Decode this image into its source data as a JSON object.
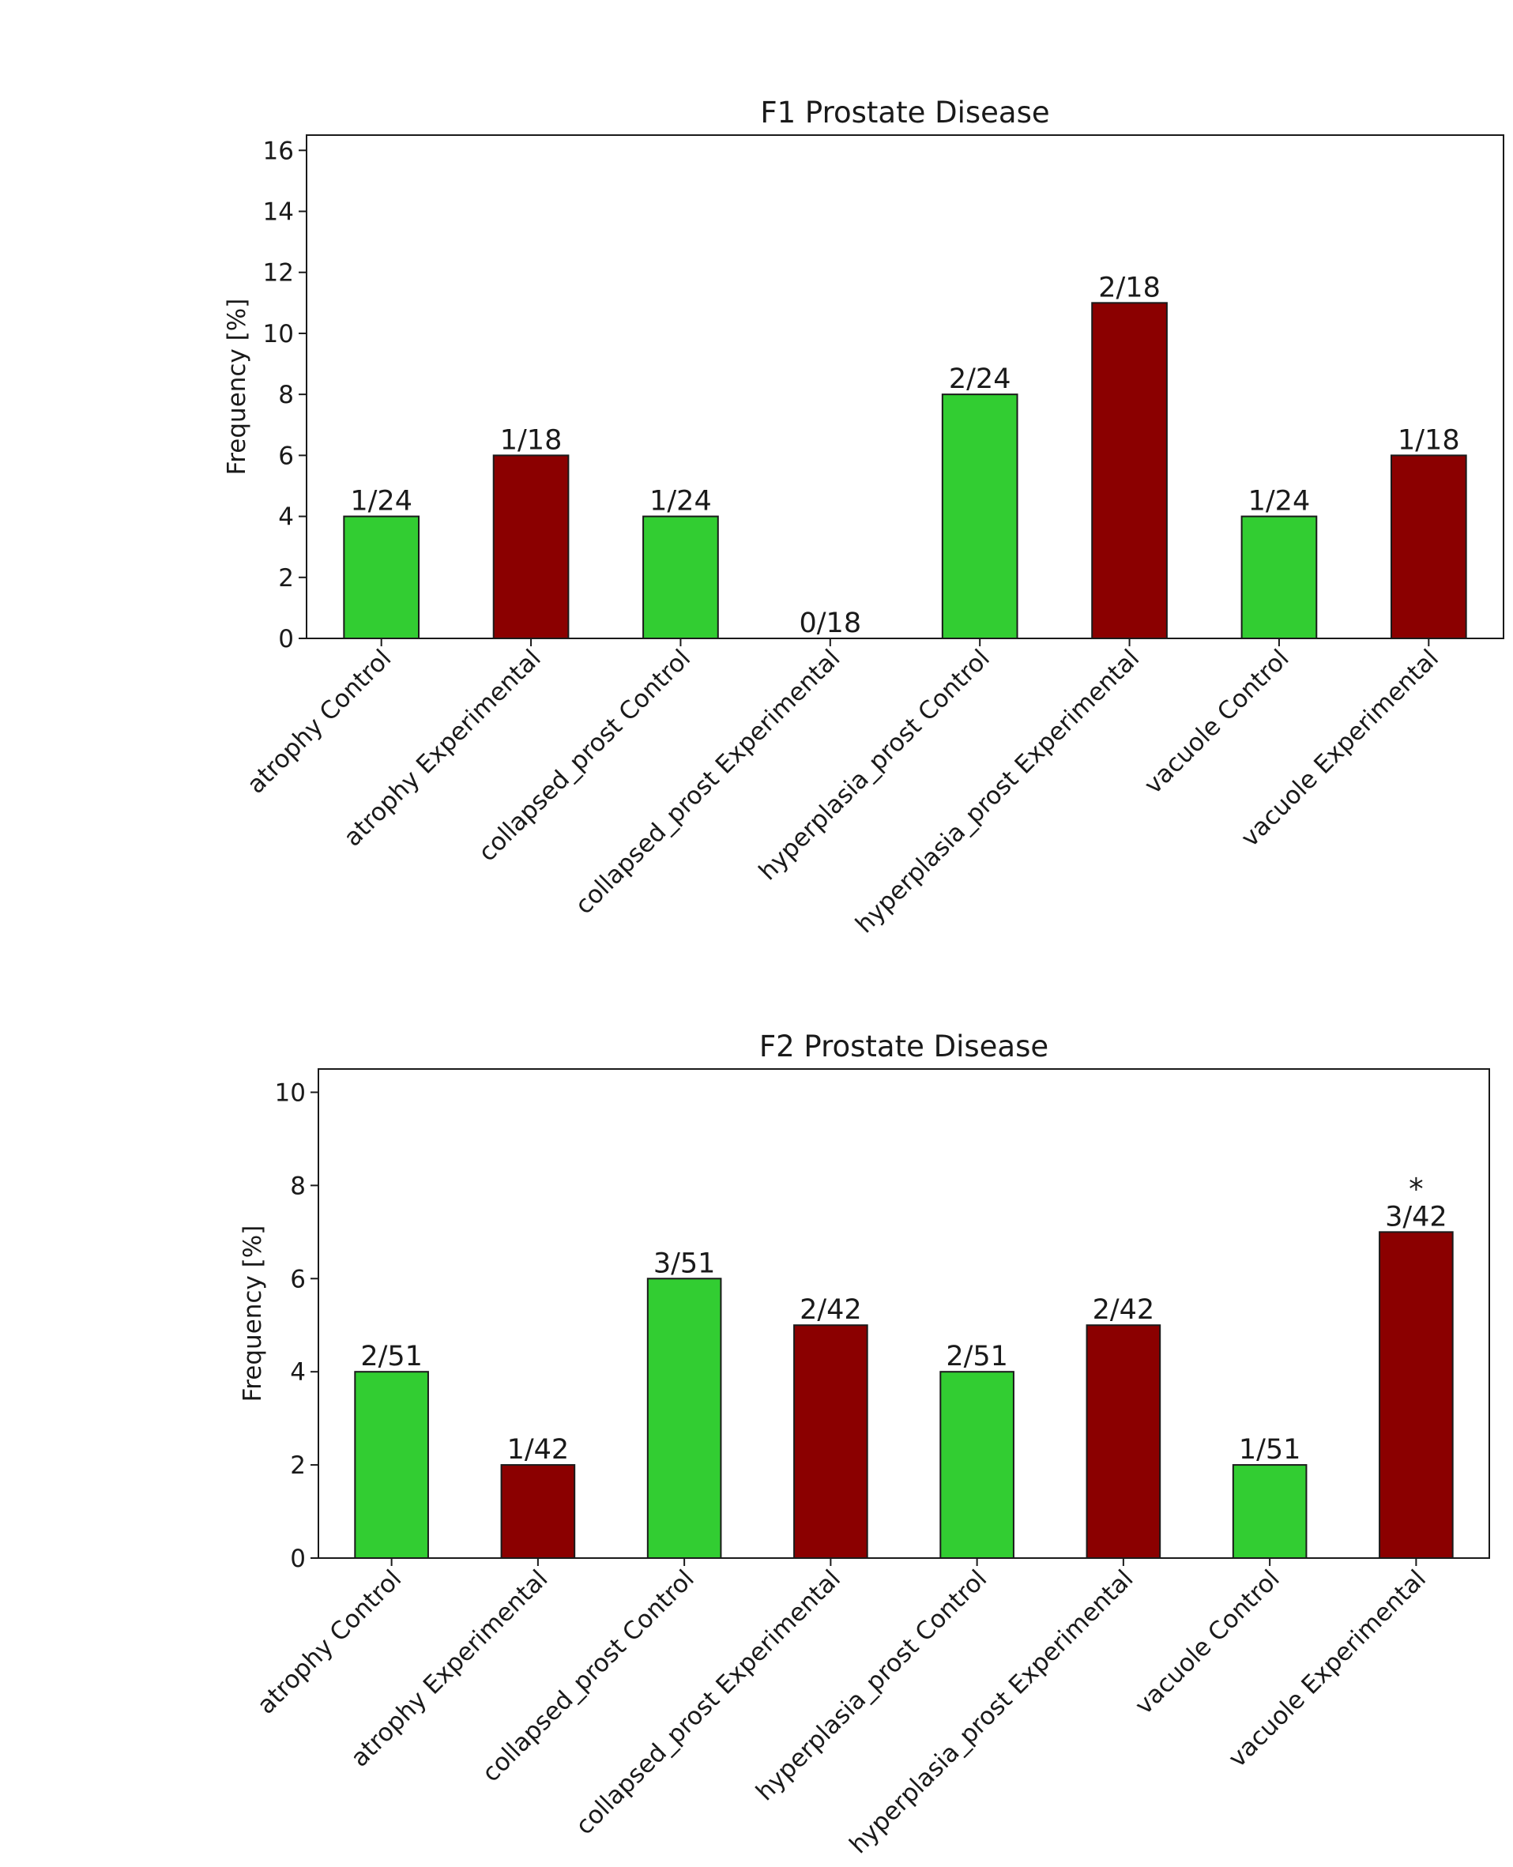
{
  "chart_data": [
    {
      "type": "bar",
      "title": "F1 Prostate Disease",
      "xlabel": "",
      "ylabel": "Frequency [%]",
      "ylim": [
        0,
        16.5
      ],
      "yticks": [
        0,
        2,
        4,
        6,
        8,
        10,
        12,
        14,
        16
      ],
      "grid": false,
      "categories": [
        "atrophy Control",
        "atrophy Experimental",
        "collapsed_prost Control",
        "collapsed_prost Experimental",
        "hyperplasia_prost Control",
        "hyperplasia_prost Experimental",
        "vacuole Control",
        "vacuole Experimental"
      ],
      "values": [
        4,
        6,
        4,
        0,
        8,
        11,
        4,
        6
      ],
      "groups": [
        "Control",
        "Experimental",
        "Control",
        "Experimental",
        "Control",
        "Experimental",
        "Control",
        "Experimental"
      ],
      "bar_labels": [
        "1/24",
        "1/18",
        "1/24",
        "0/18",
        "2/24",
        "2/18",
        "1/24",
        "1/18"
      ],
      "annotations": [
        "",
        "",
        "",
        "",
        "",
        "",
        "",
        ""
      ]
    },
    {
      "type": "bar",
      "title": "F2 Prostate Disease",
      "xlabel": "",
      "ylabel": "Frequency [%]",
      "ylim": [
        0,
        10.5
      ],
      "yticks": [
        0,
        2,
        4,
        6,
        8,
        10
      ],
      "grid": false,
      "categories": [
        "atrophy Control",
        "atrophy Experimental",
        "collapsed_prost Control",
        "collapsed_prost Experimental",
        "hyperplasia_prost Control",
        "hyperplasia_prost Experimental",
        "vacuole Control",
        "vacuole Experimental"
      ],
      "values": [
        4,
        2,
        6,
        5,
        4,
        5,
        2,
        7
      ],
      "groups": [
        "Control",
        "Experimental",
        "Control",
        "Experimental",
        "Control",
        "Experimental",
        "Control",
        "Experimental"
      ],
      "bar_labels": [
        "2/51",
        "1/42",
        "3/51",
        "2/42",
        "2/51",
        "2/42",
        "1/51",
        "3/42"
      ],
      "annotations": [
        "",
        "",
        "",
        "",
        "",
        "",
        "",
        "*"
      ]
    }
  ],
  "colors": {
    "Control": "#32cd32",
    "Experimental": "#8b0000",
    "edge": "#1a1a1a"
  }
}
